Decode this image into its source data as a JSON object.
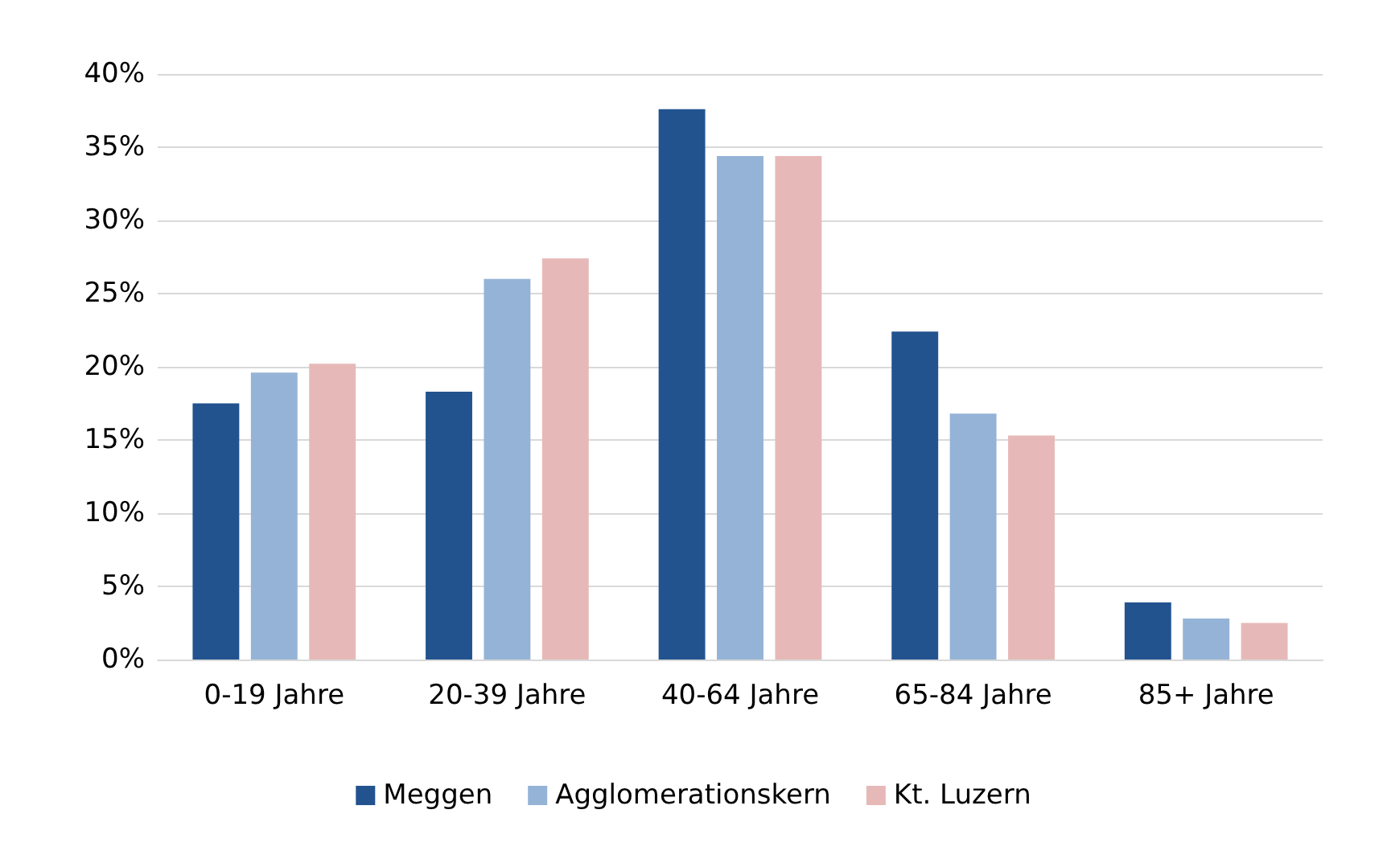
{
  "chart_data": {
    "type": "bar",
    "categories": [
      "0-19 Jahre",
      "20-39 Jahre",
      "40-64 Jahre",
      "65-84 Jahre",
      "85+ Jahre"
    ],
    "series": [
      {
        "name": "Meggen",
        "color": "#22538f",
        "values": [
          17.5,
          18.3,
          37.6,
          22.4,
          3.9
        ]
      },
      {
        "name": "Agglomerationskern",
        "color": "#95b3d7",
        "values": [
          19.6,
          26.0,
          34.4,
          16.8,
          2.8
        ]
      },
      {
        "name": "Kt. Luzern",
        "color": "#e6b9b8",
        "values": [
          20.2,
          27.4,
          34.4,
          15.3,
          2.5
        ]
      }
    ],
    "ylim": [
      0,
      40
    ],
    "yticks": [
      {
        "value": 0,
        "label": "0%"
      },
      {
        "value": 5,
        "label": "5%"
      },
      {
        "value": 10,
        "label": "10%"
      },
      {
        "value": 15,
        "label": "15%"
      },
      {
        "value": 20,
        "label": "20%"
      },
      {
        "value": 25,
        "label": "25%"
      },
      {
        "value": 30,
        "label": "30%"
      },
      {
        "value": 35,
        "label": "35%"
      },
      {
        "value": 40,
        "label": "40%"
      }
    ],
    "grid": "y",
    "legend": "bottom"
  }
}
